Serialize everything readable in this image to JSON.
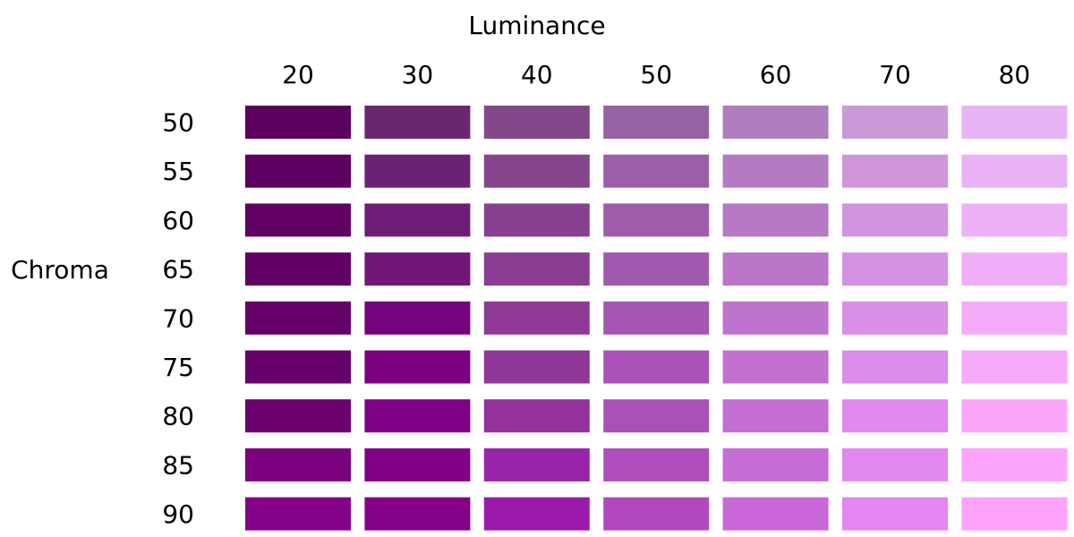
{
  "chart_data": {
    "type": "heatmap",
    "xlabel": "Luminance",
    "ylabel": "Chroma",
    "x": [
      20,
      30,
      40,
      50,
      60,
      70,
      80
    ],
    "y": [
      50,
      55,
      60,
      65,
      70,
      75,
      80,
      85,
      90
    ],
    "cells": [
      [
        "#5C005E",
        "#6A2770",
        "#82488A",
        "#9762A4",
        "#B07DBE",
        "#CB98D8",
        "#E7B4F5"
      ],
      [
        "#5E0061",
        "#6C2274",
        "#85458D",
        "#9A5FA8",
        "#B47AC2",
        "#CF96DB",
        "#EAB2F6"
      ],
      [
        "#600063",
        "#6F1D77",
        "#884190",
        "#9E5CAB",
        "#B778C5",
        "#D293DF",
        "#EEB0F7"
      ],
      [
        "#620065",
        "#72167A",
        "#8B3D93",
        "#A159AF",
        "#BA75C9",
        "#D591E3",
        "#F1AEF8"
      ],
      [
        "#640068",
        "#74037D",
        "#8E3A96",
        "#A456B2",
        "#BE73CC",
        "#D98FE6",
        "#F4ABF9"
      ],
      [
        "#66006A",
        "#7A0080",
        "#913699",
        "#A853B5",
        "#C170D0",
        "#DC8CEA",
        "#F7A9FA"
      ],
      [
        "#6C006F",
        "#7E0083",
        "#94329C",
        "#AB50B8",
        "#C46DD3",
        "#DF8AEC",
        "#FAA7FB"
      ],
      [
        "#7A007D",
        "#810086",
        "#9A24A9",
        "#AE4DBB",
        "#C76BD6",
        "#E288F0",
        "#FDA5FC"
      ],
      [
        "#850089",
        "#850089",
        "#9C1AAB",
        "#B14ABE",
        "#CA68D9",
        "#E586F4",
        "#FFA3FD"
      ]
    ]
  }
}
